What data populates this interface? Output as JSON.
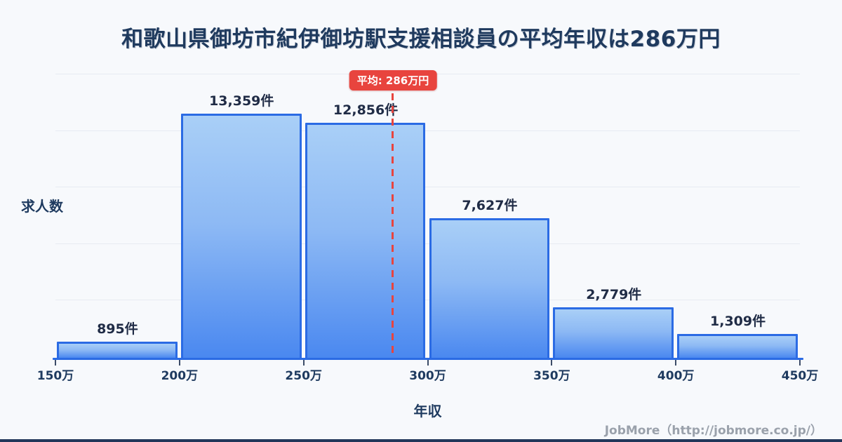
{
  "title": "和歌山県御坊市紀伊御坊駅支援相談員の平均年収は286万円",
  "chart_data": {
    "type": "bar",
    "title": "和歌山県御坊市紀伊御坊駅支援相談員の平均年収は286万円",
    "xlabel": "年収",
    "ylabel": "求人数",
    "categories": [
      "150万-200万",
      "200万-250万",
      "250万-300万",
      "300万-350万",
      "350万-400万",
      "400万-450万"
    ],
    "x_ticks": [
      "150万",
      "200万",
      "250万",
      "300万",
      "350万",
      "400万",
      "450万"
    ],
    "values": [
      895,
      13359,
      12856,
      7627,
      2779,
      1309
    ],
    "bar_labels": [
      "895件",
      "13,359件",
      "12,856件",
      "7,627件",
      "2,779件",
      "1,309件"
    ],
    "unit": "件",
    "average": {
      "value": 286,
      "label": "平均: 286万円"
    },
    "xlim": [
      150,
      450
    ],
    "ylim": [
      0,
      15000
    ],
    "grid": true,
    "legend": "none",
    "colors": {
      "background": "#F7F9FC",
      "bar_border": "#2B6BE4",
      "bar_gradient_top": "#A9CFF7",
      "bar_gradient_bottom": "#4A88F0",
      "average_red": "#E8443E",
      "title_navy": "#1F3A5E",
      "gridline": "#E7EBF2",
      "footer_gray": "#9AA1AB"
    }
  },
  "footer": {
    "credit": "JobMore（http://jobmore.co.jp/）"
  }
}
